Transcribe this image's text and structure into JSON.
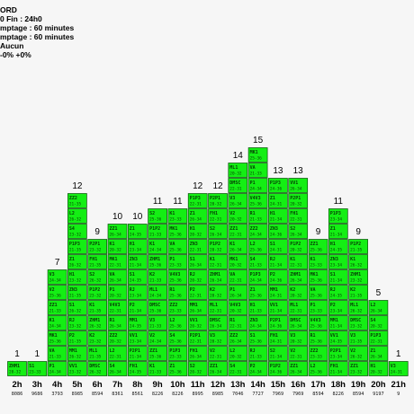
{
  "header": {
    "lines": [
      "ORD",
      "0  Fin : 24h0",
      "mptage : 60 minutes",
      "mptage : 60 minutes",
      "Aucun",
      "-0%  +0%"
    ]
  },
  "colors": {
    "cell_fill": "#14ee14",
    "cell_stroke": "#0a4d0a",
    "background": "#f6f6f6"
  },
  "chart_data": {
    "type": "bar",
    "categories": [
      "2h",
      "3h",
      "4h",
      "5h",
      "6h",
      "7h",
      "8h",
      "9h",
      "10h",
      "11h",
      "12h",
      "13h",
      "14h",
      "15h",
      "16h",
      "17h",
      "18h",
      "19h",
      "20h",
      "21h"
    ],
    "values": [
      1,
      1,
      7,
      12,
      9,
      10,
      10,
      11,
      11,
      12,
      12,
      14,
      15,
      13,
      13,
      9,
      11,
      9,
      5,
      1
    ],
    "percent_labels": [
      "8086",
      "9686",
      "3793",
      "8985",
      "8594",
      "8361",
      "8561",
      "8226",
      "8226",
      "8995",
      "8985",
      "7046",
      "7727",
      "7969",
      "7969",
      "8594",
      "8226",
      "8594",
      "9197",
      "9"
    ],
    "cell_codes": [
      "ZHM1",
      "Z1",
      "V3",
      "RJ",
      "MK1",
      "P2P1",
      "R1",
      "K1",
      "P1P3",
      "DMSC",
      "S1",
      "K1",
      "VV1",
      "V4V3",
      "P1P2",
      "S4",
      "ML1",
      "ZN3",
      "ZZ1",
      "MM1",
      "P1",
      "S2",
      "L2",
      "K2",
      "H1",
      "V2",
      "P2",
      "VA",
      "FH1",
      "ZZ2"
    ],
    "cell_times": [
      "20-32",
      "21-34",
      "24-35",
      "21-35",
      "25-36",
      "23-33",
      "26-34",
      "24-31",
      "21-34",
      "23-32",
      "24-34",
      "25-36",
      "22-31",
      "24-36",
      "23-34",
      "26-32",
      "21-33",
      "25-36"
    ]
  }
}
